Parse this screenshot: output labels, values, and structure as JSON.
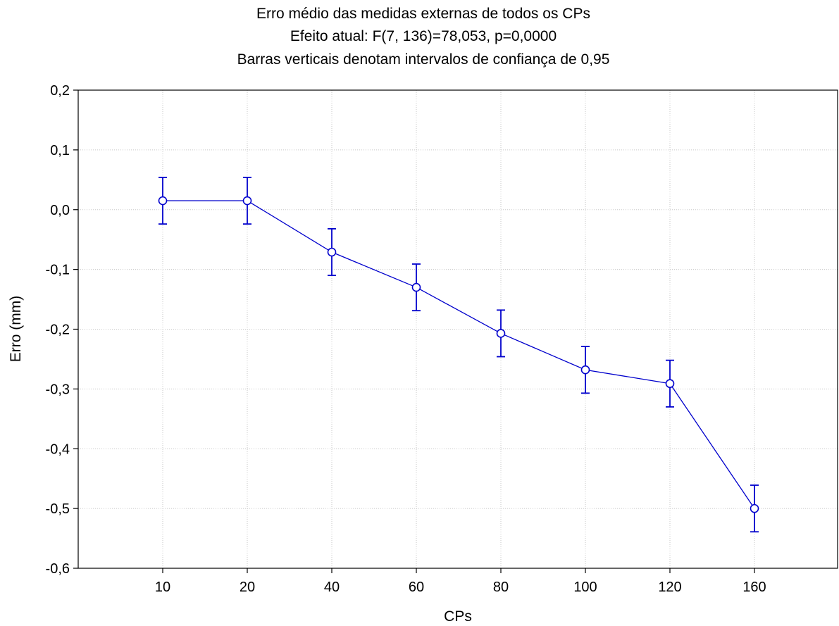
{
  "chart_data": {
    "type": "line",
    "title": [
      "Erro médio das medidas externas de todos os CPs",
      "Efeito atual: F(7, 136)=78,053, p=0,0000",
      "Barras verticais denotam intervalos de confiança de 0,95"
    ],
    "xlabel": "CPs",
    "ylabel": "Erro (mm)",
    "categories": [
      "10",
      "20",
      "40",
      "60",
      "80",
      "100",
      "120",
      "160"
    ],
    "ylim": [
      -0.6,
      0.2
    ],
    "yticks": [
      "0,2",
      "0,1",
      "0,0",
      "-0,1",
      "-0,2",
      "-0,3",
      "-0,4",
      "-0,5",
      "-0,6"
    ],
    "grid": true,
    "series_color": "#0000cc",
    "series": [
      {
        "values": [
          0.015,
          0.015,
          -0.071,
          -0.13,
          -0.207,
          -0.268,
          -0.291,
          -0.5
        ],
        "ci_lower": [
          -0.024,
          -0.024,
          -0.11,
          -0.169,
          -0.246,
          -0.307,
          -0.33,
          -0.539
        ],
        "ci_upper": [
          0.054,
          0.054,
          -0.032,
          -0.091,
          -0.168,
          -0.229,
          -0.252,
          -0.461
        ]
      }
    ]
  }
}
